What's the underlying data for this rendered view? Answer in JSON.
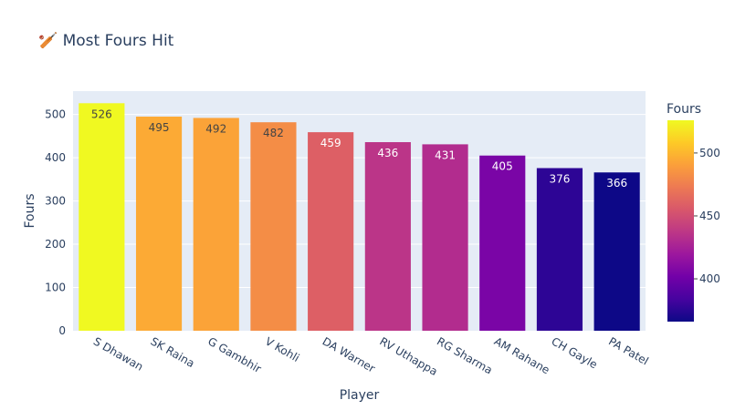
{
  "chart_data": {
    "type": "bar",
    "title": "🏏 Most Fours Hit",
    "xlabel": "Player",
    "ylabel": "Fours",
    "categories": [
      "S Dhawan",
      "SK Raina",
      "G Gambhir",
      "V Kohli",
      "DA Warner",
      "RV Uthappa",
      "RG Sharma",
      "AM Rahane",
      "CH Gayle",
      "PA Patel"
    ],
    "values": [
      526,
      495,
      492,
      482,
      459,
      436,
      431,
      405,
      376,
      366
    ],
    "ylim": [
      0,
      554
    ],
    "yticks": [
      0,
      100,
      200,
      300,
      400,
      500
    ],
    "colorscale": "Plasma",
    "colorbar": {
      "title": "Fours",
      "range": [
        366,
        526
      ],
      "ticks": [
        400,
        450,
        500
      ]
    },
    "grid": true,
    "legend": "none"
  },
  "colors": {
    "plot_bg": "#e5ecf6",
    "grid": "#ffffff",
    "text": "#2a3f5f"
  }
}
